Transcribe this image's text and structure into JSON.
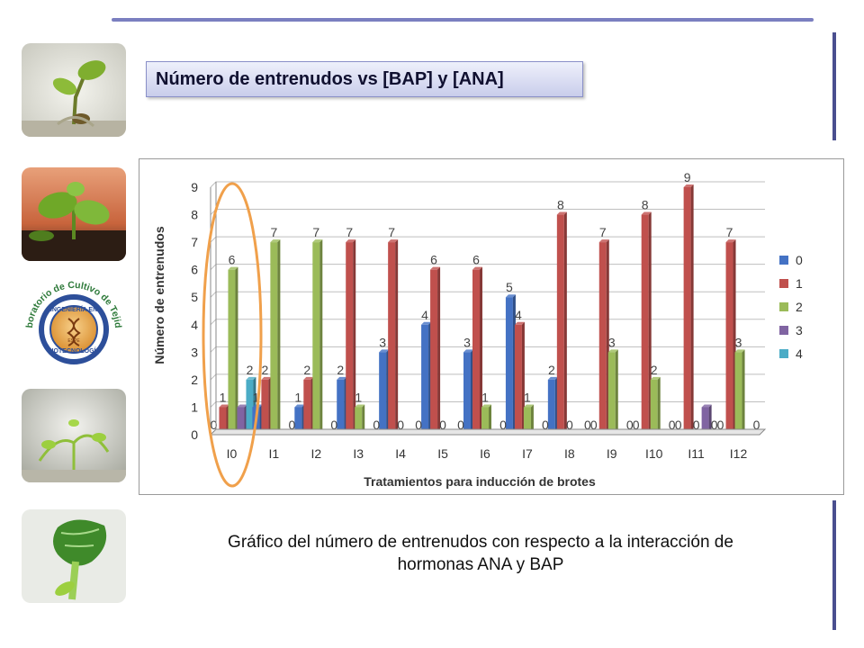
{
  "slide": {
    "title": "Número de entrenudos vs [BAP] y [ANA]",
    "caption_line1": "Gráfico del número de entrenudos con respecto a la interacción de",
    "caption_line2": "hormonas ANA y BAP"
  },
  "logo": {
    "arc_text": "Laboratorio de Cultivo de Tejidos",
    "inner_top": "INGENIERÍA EN",
    "inner_bottom": "BIOTECNOLOGÍA",
    "seal": "ESPE"
  },
  "colors": {
    "accent_rule": "#7b7fc0",
    "title_fill": "#d9dcf3",
    "highlight_ellipse": "#f0a04b"
  },
  "thumbnails": [
    {
      "icon": "plantlet-photo-icon"
    },
    {
      "icon": "seedling-soil-photo-icon"
    },
    {
      "icon": "lab-logo-icon"
    },
    {
      "icon": "plantlet-jar-photo-icon"
    },
    {
      "icon": "leaf-closeup-photo-icon"
    }
  ],
  "chart_data": {
    "type": "bar",
    "title": "",
    "xlabel": "Tratamientos para inducción de brotes",
    "ylabel": "Número de entrenudos",
    "ylim": [
      0,
      9
    ],
    "yticks": [
      0,
      1,
      2,
      3,
      4,
      5,
      6,
      7,
      8,
      9
    ],
    "grid": true,
    "legend_position": "right",
    "categories": [
      "I0",
      "I1",
      "I2",
      "I3",
      "I4",
      "I5",
      "I6",
      "I7",
      "I8",
      "I9",
      "I10",
      "I11",
      "I12"
    ],
    "series": [
      {
        "name": "0",
        "color": "#4472c4",
        "values": [
          0,
          1,
          1,
          2,
          3,
          4,
          3,
          5,
          2,
          0,
          0,
          0,
          0
        ]
      },
      {
        "name": "1",
        "color": "#c0504d",
        "values": [
          1,
          2,
          2,
          7,
          7,
          6,
          6,
          4,
          8,
          7,
          8,
          9,
          7
        ]
      },
      {
        "name": "2",
        "color": "#9bbb59",
        "values": [
          6,
          7,
          7,
          1,
          0,
          0,
          1,
          1,
          0,
          3,
          2,
          0,
          3
        ]
      },
      {
        "name": "3",
        "color": "#8064a2",
        "values": [
          1,
          0,
          0,
          0,
          0,
          0,
          0,
          0,
          0,
          0,
          0,
          1,
          0
        ]
      },
      {
        "name": "4",
        "color": "#4bacc6",
        "values": [
          2,
          0,
          0,
          0,
          0,
          0,
          0,
          0,
          0,
          0,
          0,
          0,
          0
        ]
      }
    ],
    "data_labels": [
      {
        "category": "I0",
        "labels": [
          "0",
          "1",
          "6",
          "",
          "2"
        ]
      },
      {
        "category": "I1",
        "labels": [
          "1",
          "2",
          "7",
          "",
          "0"
        ]
      },
      {
        "category": "I2",
        "labels": [
          "1",
          "2",
          "7",
          "",
          "0"
        ]
      },
      {
        "category": "I3",
        "labels": [
          "2",
          "7",
          "1",
          "",
          "0"
        ]
      },
      {
        "category": "I4",
        "labels": [
          "3",
          "7",
          "0",
          "",
          "0"
        ]
      },
      {
        "category": "I5",
        "labels": [
          "4",
          "6",
          "0",
          "",
          "0"
        ]
      },
      {
        "category": "I6",
        "labels": [
          "3",
          "6",
          "1",
          "",
          "0"
        ]
      },
      {
        "category": "I7",
        "labels": [
          "5",
          "4",
          "1",
          "",
          "0"
        ]
      },
      {
        "category": "I8",
        "labels": [
          "2",
          "8",
          "0",
          "",
          "0"
        ]
      },
      {
        "category": "I9",
        "labels": [
          "0",
          "7",
          "3",
          "",
          "0"
        ]
      },
      {
        "category": "I10",
        "labels": [
          "0",
          "8",
          "2",
          "",
          "0"
        ]
      },
      {
        "category": "I11",
        "labels": [
          "0",
          "9",
          "0",
          "",
          "0"
        ]
      },
      {
        "category": "I12",
        "labels": [
          "0",
          "7",
          "3",
          "",
          "0"
        ]
      }
    ],
    "highlight_category": "I0"
  }
}
